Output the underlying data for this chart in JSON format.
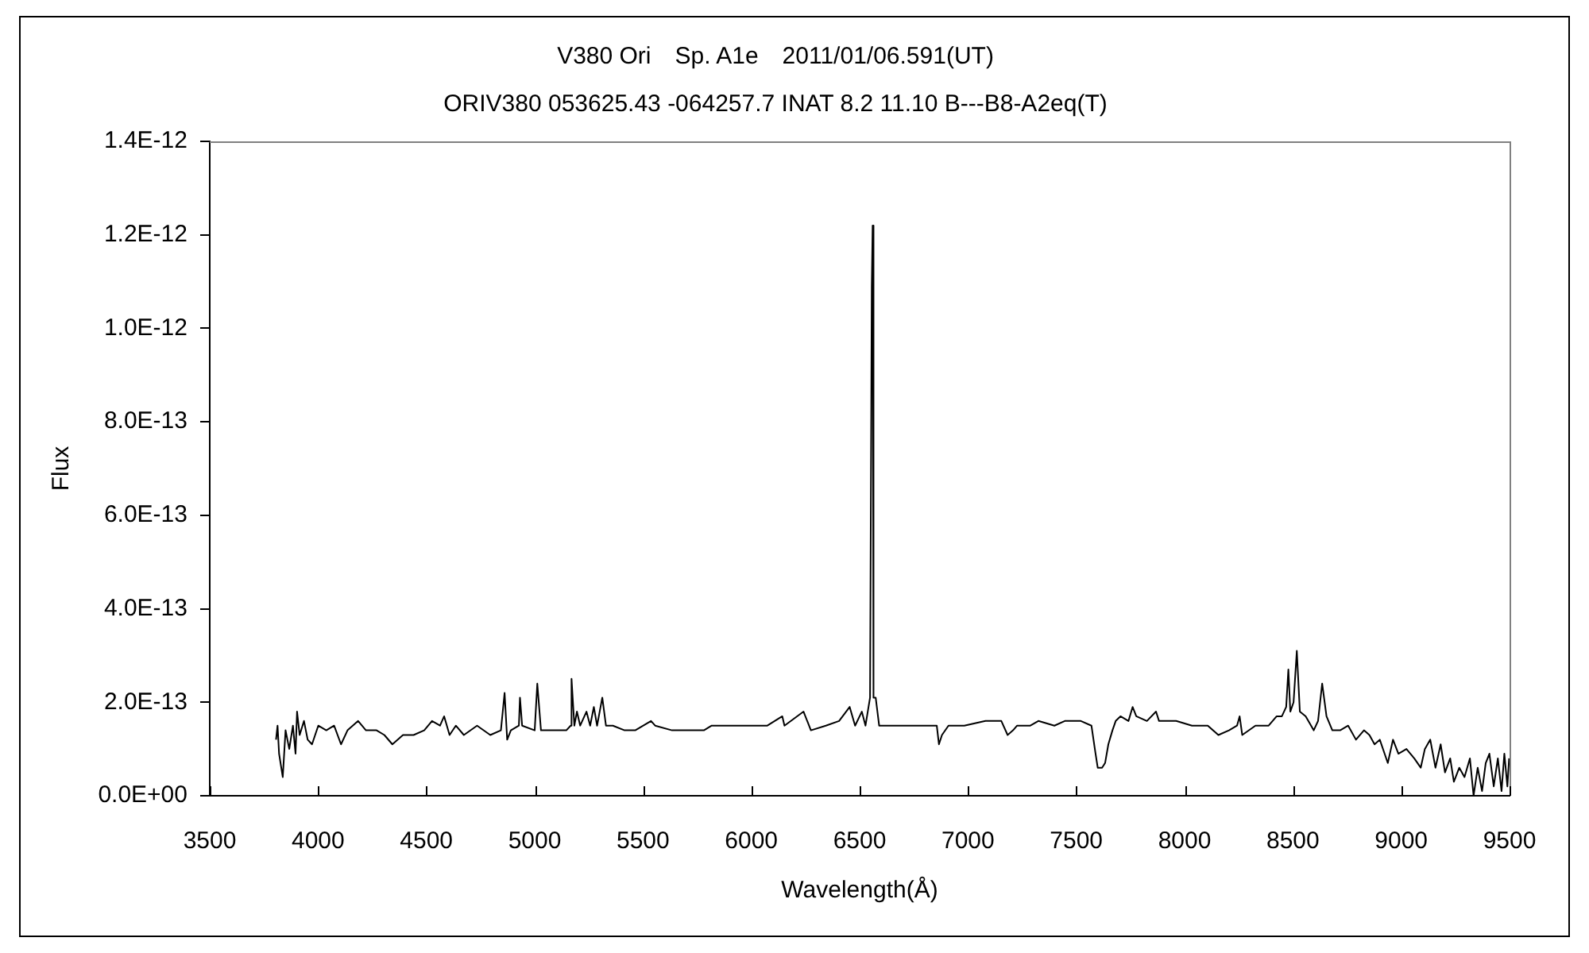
{
  "chart_data": {
    "type": "line",
    "title": "V380 Ori　Sp. A1e　2011/01/06.591(UT)",
    "subtitle": "ORIV380 053625.43 -064257.7 INAT 8.2 11.10 B---B8-A2eq(T)",
    "xlabel": "Wavelength(Å)",
    "ylabel": "Flux",
    "xlim": [
      3500,
      9500
    ],
    "xticks": [
      3500,
      4000,
      4500,
      5000,
      5500,
      6000,
      6500,
      7000,
      7500,
      8000,
      8500,
      9000,
      9500
    ],
    "ylim": [
      0,
      1.4e-12
    ],
    "yticks": [
      {
        "value": 0,
        "label": "0.0E+00"
      },
      {
        "value": 2e-13,
        "label": "2.0E-13"
      },
      {
        "value": 4e-13,
        "label": "4.0E-13"
      },
      {
        "value": 6e-13,
        "label": "6.0E-13"
      },
      {
        "value": 8e-13,
        "label": "8.0E-13"
      },
      {
        "value": 1e-12,
        "label": "1.0E-12"
      },
      {
        "value": 1.2e-12,
        "label": "1.2E-12"
      },
      {
        "value": 1.4e-12,
        "label": "1.4E-12"
      }
    ],
    "grid": false,
    "legend": false,
    "marker": "none",
    "line_style": "solid",
    "color": "#000000",
    "x": [
      3806,
      3813,
      3820,
      3837,
      3850,
      3867,
      3884,
      3896,
      3903,
      3915,
      3935,
      3952,
      3972,
      4001,
      4038,
      4074,
      4106,
      4136,
      4185,
      4221,
      4270,
      4306,
      4343,
      4392,
      4441,
      4490,
      4526,
      4563,
      4582,
      4607,
      4636,
      4673,
      4734,
      4795,
      4844,
      4861,
      4873,
      4890,
      4927,
      4932,
      4942,
      5000,
      5012,
      5029,
      5146,
      5166,
      5170,
      5183,
      5195,
      5210,
      5239,
      5256,
      5273,
      5288,
      5312,
      5329,
      5361,
      5415,
      5464,
      5537,
      5556,
      5634,
      5781,
      5817,
      5879,
      5928,
      6001,
      6074,
      6143,
      6153,
      6241,
      6275,
      6344,
      6405,
      6454,
      6479,
      6510,
      6527,
      6548,
      6556,
      6560,
      6564,
      6574,
      6590,
      6677,
      6856,
      6866,
      6880,
      6910,
      6983,
      7081,
      7154,
      7183,
      7208,
      7227,
      7288,
      7325,
      7399,
      7447,
      7521,
      7570,
      7589,
      7599,
      7619,
      7633,
      7648,
      7667,
      7682,
      7704,
      7741,
      7760,
      7777,
      7826,
      7868,
      7882,
      7961,
      8034,
      8107,
      8156,
      8205,
      8242,
      8254,
      8266,
      8327,
      8388,
      8425,
      8449,
      8469,
      8479,
      8488,
      8503,
      8518,
      8532,
      8559,
      8596,
      8616,
      8635,
      8655,
      8682,
      8718,
      8755,
      8791,
      8828,
      8853,
      8877,
      8901,
      8938,
      8962,
      8987,
      9024,
      9060,
      9090,
      9109,
      9134,
      9158,
      9182,
      9202,
      9226,
      9243,
      9268,
      9292,
      9317,
      9334,
      9353,
      9373,
      9390,
      9407,
      9427,
      9446,
      9463,
      9476,
      9490,
      9498
    ],
    "values": [
      1.2e-13,
      1.5e-13,
      9e-14,
      4e-14,
      1.4e-13,
      1e-13,
      1.5e-13,
      9e-14,
      1.8e-13,
      1.3e-13,
      1.6e-13,
      1.2e-13,
      1.1e-13,
      1.5e-13,
      1.4e-13,
      1.5e-13,
      1.1e-13,
      1.4e-13,
      1.6e-13,
      1.4e-13,
      1.4e-13,
      1.3e-13,
      1.1e-13,
      1.3e-13,
      1.3e-13,
      1.4e-13,
      1.6e-13,
      1.5e-13,
      1.7e-13,
      1.3e-13,
      1.5e-13,
      1.3e-13,
      1.5e-13,
      1.3e-13,
      1.4e-13,
      2.2e-13,
      1.2e-13,
      1.4e-13,
      1.5e-13,
      2.1e-13,
      1.5e-13,
      1.4e-13,
      2.4e-13,
      1.4e-13,
      1.4e-13,
      1.5e-13,
      2.5e-13,
      1.5e-13,
      1.8e-13,
      1.5e-13,
      1.8e-13,
      1.5e-13,
      1.9e-13,
      1.5e-13,
      2.1e-13,
      1.5e-13,
      1.5e-13,
      1.4e-13,
      1.4e-13,
      1.6e-13,
      1.5e-13,
      1.4e-13,
      1.4e-13,
      1.5e-13,
      1.5e-13,
      1.5e-13,
      1.5e-13,
      1.5e-13,
      1.7e-13,
      1.5e-13,
      1.8e-13,
      1.4e-13,
      1.5e-13,
      1.6e-13,
      1.9e-13,
      1.5e-13,
      1.8e-13,
      1.5e-13,
      2.1e-13,
      1.09e-12,
      1.22e-12,
      2.1e-13,
      2.1e-13,
      1.5e-13,
      1.5e-13,
      1.5e-13,
      1.1e-13,
      1.3e-13,
      1.5e-13,
      1.5e-13,
      1.6e-13,
      1.6e-13,
      1.3e-13,
      1.4e-13,
      1.5e-13,
      1.5e-13,
      1.6e-13,
      1.5e-13,
      1.6e-13,
      1.6e-13,
      1.5e-13,
      9e-14,
      6e-14,
      6e-14,
      7e-14,
      1.1e-13,
      1.4e-13,
      1.6e-13,
      1.7e-13,
      1.6e-13,
      1.9e-13,
      1.7e-13,
      1.6e-13,
      1.8e-13,
      1.6e-13,
      1.6e-13,
      1.5e-13,
      1.5e-13,
      1.3e-13,
      1.4e-13,
      1.5e-13,
      1.7e-13,
      1.3e-13,
      1.5e-13,
      1.5e-13,
      1.7e-13,
      1.7e-13,
      1.9e-13,
      2.7e-13,
      1.8e-13,
      2e-13,
      3.1e-13,
      1.8e-13,
      1.7e-13,
      1.4e-13,
      1.6e-13,
      2.4e-13,
      1.7e-13,
      1.4e-13,
      1.4e-13,
      1.5e-13,
      1.2e-13,
      1.4e-13,
      1.3e-13,
      1.1e-13,
      1.2e-13,
      7e-14,
      1.2e-13,
      9e-14,
      1e-13,
      8e-14,
      6e-14,
      1e-13,
      1.2e-13,
      6e-14,
      1.1e-13,
      5e-14,
      8e-14,
      3e-14,
      6e-14,
      4e-14,
      8e-14,
      0,
      6e-14,
      1e-14,
      7e-14,
      9e-14,
      2e-14,
      8e-14,
      1e-14,
      9e-14,
      2e-14,
      8e-14
    ]
  }
}
